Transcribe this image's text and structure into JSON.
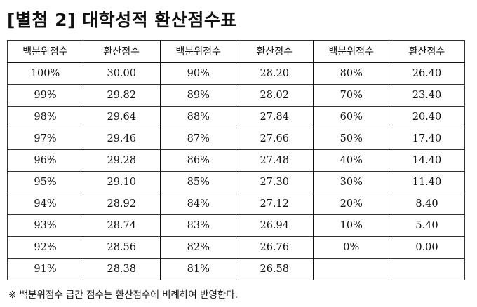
{
  "title": "[별첨 2] 대학성적 환산점수표",
  "headers": [
    "백분위점수",
    "환산점수",
    "백분위점수",
    "환산점수",
    "백분위점수",
    "환산점수"
  ],
  "rows": [
    [
      "100%",
      "30.00",
      "90%",
      "28.20",
      "80%",
      "26.40"
    ],
    [
      "99%",
      "29.82",
      "89%",
      "28.02",
      "70%",
      "23.40"
    ],
    [
      "98%",
      "29.64",
      "88%",
      "27.84",
      "60%",
      "20.40"
    ],
    [
      "97%",
      "29.46",
      "87%",
      "27.66",
      "50%",
      "17.40"
    ],
    [
      "96%",
      "29.28",
      "86%",
      "27.48",
      "40%",
      "14.40"
    ],
    [
      "95%",
      "29.10",
      "85%",
      "27.30",
      "30%",
      "11.40"
    ],
    [
      "94%",
      "28.92",
      "84%",
      "27.12",
      "20%",
      "8.40"
    ],
    [
      "93%",
      "28.74",
      "83%",
      "26.94",
      "10%",
      "5.40"
    ],
    [
      "92%",
      "28.56",
      "82%",
      "26.76",
      "0%",
      "0.00"
    ],
    [
      "91%",
      "28.38",
      "81%",
      "26.58",
      "",
      ""
    ]
  ],
  "note": "※ 백분위점수 급간 점수는 환산점수에 비례하여 반영한다."
}
